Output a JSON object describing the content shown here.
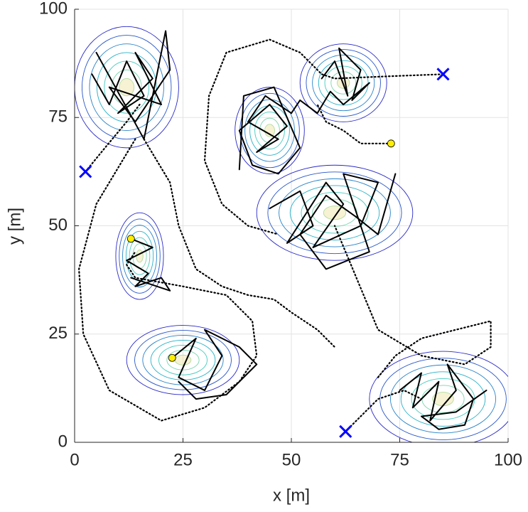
{
  "chart_data": {
    "type": "scatter",
    "xlabel": "x [m]",
    "ylabel": "y [m]",
    "xlim": [
      0,
      100
    ],
    "ylim": [
      0,
      100
    ],
    "xticks": [
      0,
      25,
      50,
      75,
      100
    ],
    "yticks": [
      0,
      25,
      50,
      75,
      100
    ],
    "grid": true,
    "series": [
      {
        "type": "contour",
        "x": [
          12
        ],
        "y": [
          82
        ],
        "sx": 12,
        "sy": 14,
        "levels": 7
      },
      {
        "type": "contour",
        "x": [
          45
        ],
        "y": [
          72
        ],
        "sx": 8,
        "sy": 10,
        "levels": 7
      },
      {
        "type": "contour",
        "x": [
          62
        ],
        "y": [
          83
        ],
        "sx": 10,
        "sy": 9,
        "levels": 7
      },
      {
        "type": "contour",
        "x": [
          60
        ],
        "y": [
          53
        ],
        "sx": 18,
        "sy": 11,
        "levels": 7
      },
      {
        "type": "contour",
        "x": [
          15
        ],
        "y": [
          43
        ],
        "sx": 5.5,
        "sy": 10,
        "levels": 7
      },
      {
        "type": "contour",
        "x": [
          25
        ],
        "y": [
          19
        ],
        "sx": 13,
        "sy": 8,
        "levels": 7
      },
      {
        "type": "contour",
        "x": [
          85
        ],
        "y": [
          10
        ],
        "sx": 17,
        "sy": 11,
        "levels": 7
      },
      {
        "type": "line",
        "dash": "dotted",
        "color": "#000000",
        "x": [
          85,
          72,
          60,
          57,
          52,
          45,
          35,
          31,
          30,
          34,
          40,
          47
        ],
        "y": [
          85,
          84.5,
          84,
          85,
          90,
          93,
          90,
          80,
          65,
          55,
          50,
          48
        ]
      },
      {
        "type": "line",
        "dash": "solid",
        "color": "#000000",
        "x": [
          57,
          60,
          63,
          61,
          66,
          64,
          68,
          62,
          59,
          56,
          52,
          50
        ],
        "y": [
          84,
          88,
          80,
          91,
          86,
          79,
          83,
          78,
          81,
          76,
          79,
          76
        ]
      },
      {
        "type": "line",
        "dash": "solid",
        "color": "#000000",
        "x": [
          50,
          44,
          40,
          47,
          42,
          49,
          45,
          38,
          41,
          47,
          52,
          46,
          39,
          38
        ],
        "y": [
          76,
          80,
          74,
          70,
          67,
          73,
          78,
          72,
          64,
          62,
          68,
          82,
          80,
          63
        ]
      },
      {
        "type": "line",
        "dash": "solid",
        "color": "#000000",
        "x": [
          45,
          52,
          55,
          49,
          58,
          62,
          55,
          66,
          70,
          62,
          68,
          58,
          52,
          58,
          65,
          70,
          74
        ],
        "y": [
          54,
          58,
          50,
          46,
          60,
          55,
          45,
          50,
          60,
          62,
          44,
          40,
          48,
          57,
          52,
          48,
          62
        ]
      },
      {
        "type": "line",
        "dash": "dotted",
        "color": "#000000",
        "x": [
          2.5,
          7,
          12,
          15
        ],
        "y": [
          62.5,
          68,
          74,
          78
        ]
      },
      {
        "type": "line",
        "dash": "solid",
        "color": "#000000",
        "x": [
          4,
          8,
          12,
          16,
          10,
          18,
          14,
          20,
          8,
          14,
          22,
          21,
          16,
          5
        ],
        "y": [
          85,
          78,
          88,
          80,
          76,
          84,
          90,
          78,
          82,
          74,
          86,
          95,
          70,
          90
        ]
      },
      {
        "type": "line",
        "dash": "dotted",
        "color": "#000000",
        "x": [
          16,
          22,
          24,
          28,
          34,
          40,
          46,
          50,
          56,
          60
        ],
        "y": [
          70,
          60,
          50,
          40,
          36,
          34,
          33,
          30,
          26,
          22
        ]
      },
      {
        "type": "line",
        "dash": "dotted",
        "color": "#000000",
        "x": [
          14,
          5,
          1,
          2,
          8,
          20,
          30,
          38,
          42,
          41,
          35,
          25,
          14,
          12,
          14
        ],
        "y": [
          70,
          55,
          40,
          25,
          12,
          5,
          8,
          14,
          20,
          28,
          34,
          36,
          38,
          41,
          44
        ]
      },
      {
        "type": "line",
        "dash": "solid",
        "color": "#000000",
        "x": [
          13,
          18,
          12,
          17,
          14,
          20,
          22,
          13
        ],
        "y": [
          47,
          45,
          42,
          39,
          36,
          38,
          35,
          38
        ]
      },
      {
        "type": "line",
        "dash": "solid",
        "color": "#000000",
        "x": [
          22.5,
          28,
          24,
          30,
          34,
          30,
          38,
          42,
          35,
          28,
          24
        ],
        "y": [
          19.5,
          24,
          15,
          12,
          20,
          26,
          22,
          18,
          11,
          10,
          14
        ]
      },
      {
        "type": "line",
        "dash": "dotted",
        "color": "#000000",
        "x": [
          62.5,
          70,
          76,
          80
        ],
        "y": [
          2.5,
          10,
          12,
          10
        ]
      },
      {
        "type": "line",
        "dash": "solid",
        "color": "#000000",
        "x": [
          75,
          80,
          78,
          84,
          82,
          88,
          86,
          92,
          90,
          84,
          80,
          88,
          95
        ],
        "y": [
          12,
          16,
          8,
          14,
          5,
          12,
          18,
          10,
          4,
          3,
          6,
          7,
          12
        ]
      },
      {
        "type": "line",
        "dash": "dotted",
        "color": "#000000",
        "x": [
          70,
          74,
          80,
          88,
          96,
          96,
          90,
          80,
          70,
          60
        ],
        "y": [
          15,
          20,
          24,
          26,
          28,
          22,
          18,
          20,
          26,
          50
        ]
      },
      {
        "type": "line",
        "dash": "dotted",
        "color": "#000000",
        "x": [
          73,
          66,
          62,
          58,
          56
        ],
        "y": [
          69,
          69,
          72,
          74,
          78
        ]
      },
      {
        "type": "marker",
        "marker": "x",
        "color": "#0000ff",
        "x": [
          2.5,
          85,
          62.5
        ],
        "y": [
          62.5,
          85,
          2.5
        ]
      },
      {
        "type": "marker",
        "marker": "circle",
        "color": "#ffee00",
        "x": [
          13,
          73,
          22.5
        ],
        "y": [
          47,
          69,
          19.5
        ]
      }
    ]
  }
}
